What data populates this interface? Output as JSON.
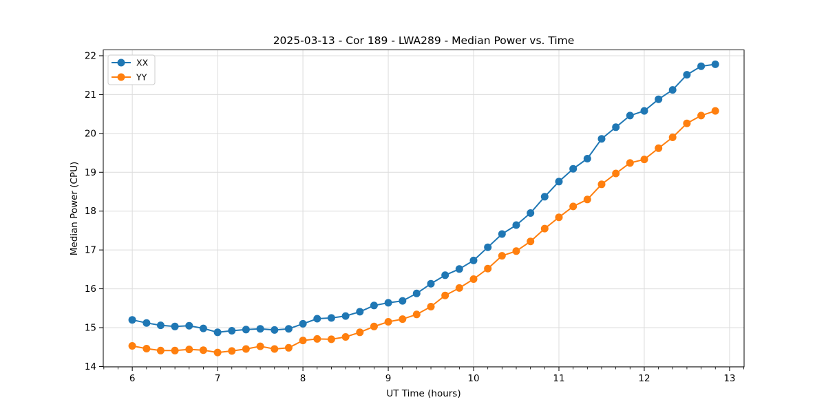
{
  "chart_data": {
    "type": "line",
    "title": "2025-03-13 - Cor 189 - LWA289 - Median Power vs. Time",
    "xlabel": "UT Time (hours)",
    "ylabel": "Median Power (CPU)",
    "xlim": [
      5.66,
      13.17
    ],
    "ylim": [
      13.99,
      22.15
    ],
    "x_ticks": [
      6,
      7,
      8,
      9,
      10,
      11,
      12,
      13
    ],
    "y_ticks": [
      14,
      15,
      16,
      17,
      18,
      19,
      20,
      21,
      22
    ],
    "x_minor_step": 0.1666667,
    "grid": true,
    "legend_position": "upper-left",
    "x": [
      6.0,
      6.167,
      6.333,
      6.5,
      6.667,
      6.833,
      7.0,
      7.167,
      7.333,
      7.5,
      7.667,
      7.833,
      8.0,
      8.167,
      8.333,
      8.5,
      8.667,
      8.833,
      9.0,
      9.167,
      9.333,
      9.5,
      9.667,
      9.833,
      10.0,
      10.167,
      10.333,
      10.5,
      10.667,
      10.833,
      11.0,
      11.167,
      11.333,
      11.5,
      11.667,
      11.833,
      12.0,
      12.167,
      12.333,
      12.5,
      12.667,
      12.833
    ],
    "series": [
      {
        "name": "XX",
        "color": "#1f77b4",
        "values": [
          15.2,
          15.12,
          15.06,
          15.03,
          15.05,
          14.98,
          14.88,
          14.92,
          14.95,
          14.97,
          14.94,
          14.97,
          15.1,
          15.23,
          15.25,
          15.3,
          15.41,
          15.57,
          15.64,
          15.69,
          15.88,
          16.13,
          16.35,
          16.51,
          16.73,
          17.07,
          17.41,
          17.64,
          17.95,
          18.37,
          18.76,
          19.09,
          19.35,
          19.86,
          20.16,
          20.46,
          20.58,
          20.88,
          21.12,
          21.51,
          21.73,
          21.78
        ]
      },
      {
        "name": "YY",
        "color": "#ff7f0e",
        "values": [
          14.53,
          14.46,
          14.41,
          14.41,
          14.44,
          14.42,
          14.36,
          14.4,
          14.45,
          14.52,
          14.45,
          14.48,
          14.67,
          14.71,
          14.7,
          14.76,
          14.88,
          15.03,
          15.15,
          15.22,
          15.34,
          15.54,
          15.83,
          16.02,
          16.25,
          16.52,
          16.85,
          16.97,
          17.22,
          17.55,
          17.84,
          18.12,
          18.3,
          18.69,
          18.97,
          19.24,
          19.33,
          19.62,
          19.9,
          20.26,
          20.46,
          20.58
        ]
      }
    ]
  }
}
